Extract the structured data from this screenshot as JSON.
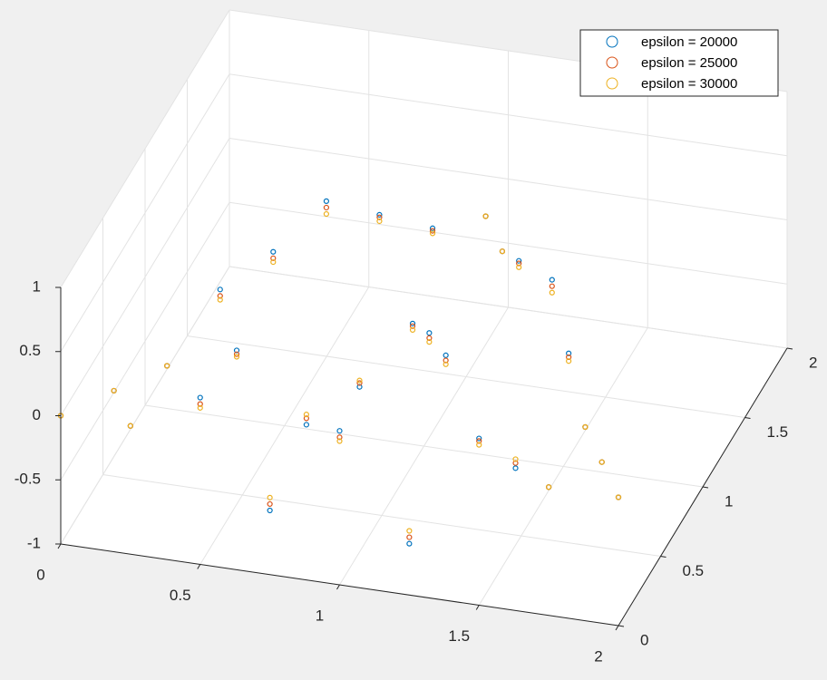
{
  "chart_data": {
    "type": "scatter3",
    "x": [
      0,
      0.25,
      0.5,
      0.75,
      1,
      1.25,
      1.5,
      1.75,
      2,
      0.125,
      0.375,
      0.25,
      0.5,
      0.625,
      0.75,
      0.875,
      1,
      1.125,
      1.25,
      1.5,
      1.625,
      1.75,
      1.875,
      0.75,
      1,
      1.25,
      0.5,
      1.5,
      0.875,
      1.125
    ],
    "y": [
      0,
      0,
      0,
      0,
      0,
      0,
      0,
      0,
      0,
      0.217,
      0.65,
      0.433,
      0.866,
      1.083,
      1.299,
      1.516,
      1.732,
      1.516,
      1.299,
      0.866,
      0.65,
      0.433,
      0.217,
      0.433,
      0.866,
      0.433,
      0.433,
      0.433,
      0.65,
      0.65
    ],
    "series": [
      {
        "name": "epsilon = 20000",
        "color": "#0072BD",
        "z": [
          0,
          0,
          0.3,
          -0.5,
          0.2,
          -0.6,
          0.3,
          0,
          0,
          0,
          0.4,
          0,
          0.5,
          0.7,
          0.4,
          0.1,
          0,
          0,
          0.2,
          0.6,
          0.3,
          0,
          0,
          -0.3,
          0.1,
          0.4,
          0.2,
          -0.4,
          -0.2,
          0.3
        ]
      },
      {
        "name": "epsilon = 25000",
        "color": "#D95319",
        "z": [
          0,
          0,
          0.25,
          -0.45,
          0.15,
          -0.55,
          0.28,
          0,
          0,
          0,
          0.35,
          0,
          0.45,
          0.65,
          0.38,
          0.08,
          0,
          0,
          0.18,
          0.55,
          0.27,
          0,
          0,
          -0.25,
          0.08,
          0.36,
          0.17,
          -0.36,
          -0.17,
          0.26
        ]
      },
      {
        "name": "epsilon = 30000",
        "color": "#EDB120",
        "z": [
          0,
          0,
          0.22,
          -0.4,
          0.12,
          -0.5,
          0.25,
          0,
          0,
          0,
          0.32,
          0,
          0.42,
          0.6,
          0.35,
          0.06,
          0,
          0,
          0.15,
          0.5,
          0.24,
          0,
          0,
          -0.22,
          0.05,
          0.33,
          0.15,
          -0.33,
          -0.15,
          0.23
        ]
      }
    ],
    "xlim": [
      0,
      2
    ],
    "ylim": [
      0,
      2
    ],
    "zlim": [
      -1,
      1
    ],
    "xticks": [
      0,
      0.5,
      1,
      1.5,
      2
    ],
    "yticks": [
      0,
      0.5,
      1,
      1.5,
      2
    ],
    "zticks": [
      -1,
      -0.5,
      0,
      0.5,
      1
    ],
    "grid": true,
    "legend": "northeast"
  }
}
